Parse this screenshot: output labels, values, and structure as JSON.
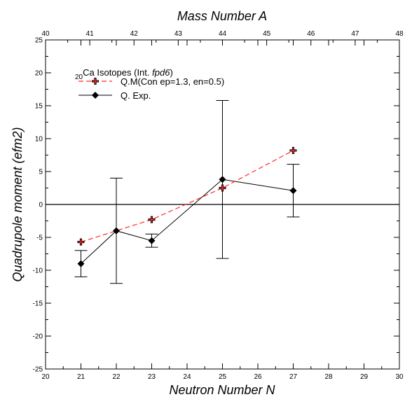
{
  "chart_data": {
    "type": "line",
    "title_prefix_sub": "20",
    "title_main": "Ca Isotopes (Int. ",
    "title_italic": "fpd6",
    "title_suffix": ")",
    "xlabel": "Neutron Number N",
    "x2label": "Mass Number A",
    "ylabel": "Quadrupole moment (efm2)",
    "xlim": [
      20,
      30
    ],
    "x2lim": [
      40,
      48
    ],
    "ylim": [
      -25,
      25
    ],
    "xticks": [
      "20",
      "21",
      "22",
      "23",
      "24",
      "25",
      "26",
      "27",
      "28",
      "29",
      "30"
    ],
    "x2ticks": [
      "40",
      "41",
      "42",
      "43",
      "44",
      "45",
      "46",
      "47",
      "48"
    ],
    "yticks": [
      "25",
      "20",
      "15",
      "10",
      "5",
      "0",
      "-5",
      "-10",
      "-15",
      "-20",
      "-25"
    ],
    "legend_position": "top-left",
    "series": [
      {
        "name": "Q.M(Con ep=1.3, en=0.5)",
        "style": "dashed",
        "color": "#ff2a2a",
        "marker": "cross",
        "x": [
          21,
          23,
          25,
          27
        ],
        "y": [
          -5.7,
          -2.3,
          2.5,
          8.2
        ]
      },
      {
        "name": "Q. Exp.",
        "style": "solid",
        "color": "#000000",
        "marker": "diamond",
        "x": [
          21,
          22,
          23,
          25,
          27
        ],
        "y": [
          -9.0,
          -4.0,
          -5.5,
          3.8,
          2.1
        ],
        "err": [
          2.0,
          8.0,
          1.0,
          12.0,
          4.0
        ]
      }
    ]
  }
}
